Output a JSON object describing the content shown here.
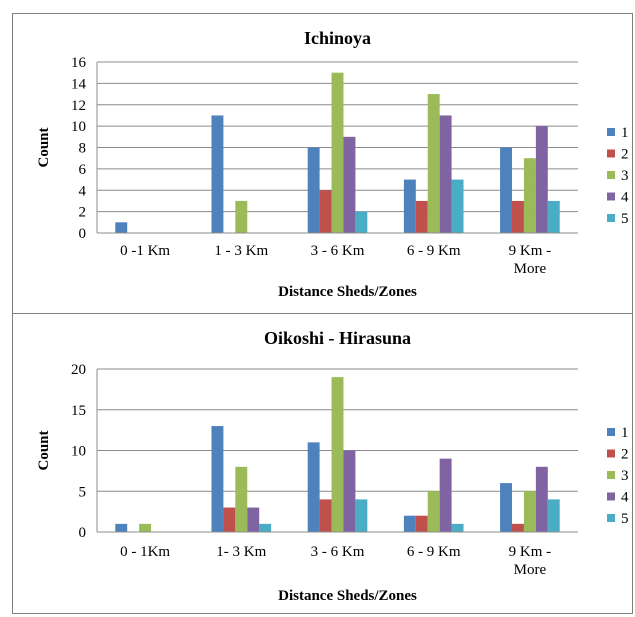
{
  "chart_data": [
    {
      "type": "bar",
      "title": "Ichinoya",
      "xlabel": "Distance Sheds/Zones",
      "ylabel": "Count",
      "categories": [
        [
          "0 -1 Km"
        ],
        [
          "1 - 3 Km"
        ],
        [
          "3 - 6 Km"
        ],
        [
          "6 - 9 Km"
        ],
        [
          "9 Km -",
          "More"
        ]
      ],
      "ylim": [
        0,
        16
      ],
      "yticks": [
        0,
        2,
        4,
        6,
        8,
        10,
        12,
        14,
        16
      ],
      "grid": true,
      "legend_position": "right",
      "series": [
        {
          "name": "1",
          "color": "#4F81BD",
          "values": [
            1,
            11,
            8,
            5,
            8
          ]
        },
        {
          "name": "2",
          "color": "#C0504D",
          "values": [
            0,
            0,
            4,
            3,
            3
          ]
        },
        {
          "name": "3",
          "color": "#9BBB59",
          "values": [
            0,
            3,
            15,
            13,
            7
          ]
        },
        {
          "name": "4",
          "color": "#8064A2",
          "values": [
            0,
            0,
            9,
            11,
            10
          ]
        },
        {
          "name": "5",
          "color": "#4BACC6",
          "values": [
            0,
            0,
            2,
            5,
            3
          ]
        }
      ]
    },
    {
      "type": "bar",
      "title": "Oikoshi - Hirasuna",
      "xlabel": "Distance Sheds/Zones",
      "ylabel": "Count",
      "categories": [
        [
          "0 - 1Km"
        ],
        [
          "1- 3 Km"
        ],
        [
          "3 - 6 Km"
        ],
        [
          "6 - 9 Km"
        ],
        [
          "9 Km -",
          "More"
        ]
      ],
      "ylim": [
        0,
        20
      ],
      "yticks": [
        0,
        5,
        10,
        15,
        20
      ],
      "grid": true,
      "legend_position": "right",
      "series": [
        {
          "name": "1",
          "color": "#4F81BD",
          "values": [
            1,
            13,
            11,
            2,
            6
          ]
        },
        {
          "name": "2",
          "color": "#C0504D",
          "values": [
            0,
            3,
            4,
            2,
            1
          ]
        },
        {
          "name": "3",
          "color": "#9BBB59",
          "values": [
            1,
            8,
            19,
            5,
            5
          ]
        },
        {
          "name": "4",
          "color": "#8064A2",
          "values": [
            0,
            3,
            10,
            9,
            8
          ]
        },
        {
          "name": "5",
          "color": "#4BACC6",
          "values": [
            0,
            1,
            4,
            1,
            4
          ]
        }
      ]
    }
  ]
}
